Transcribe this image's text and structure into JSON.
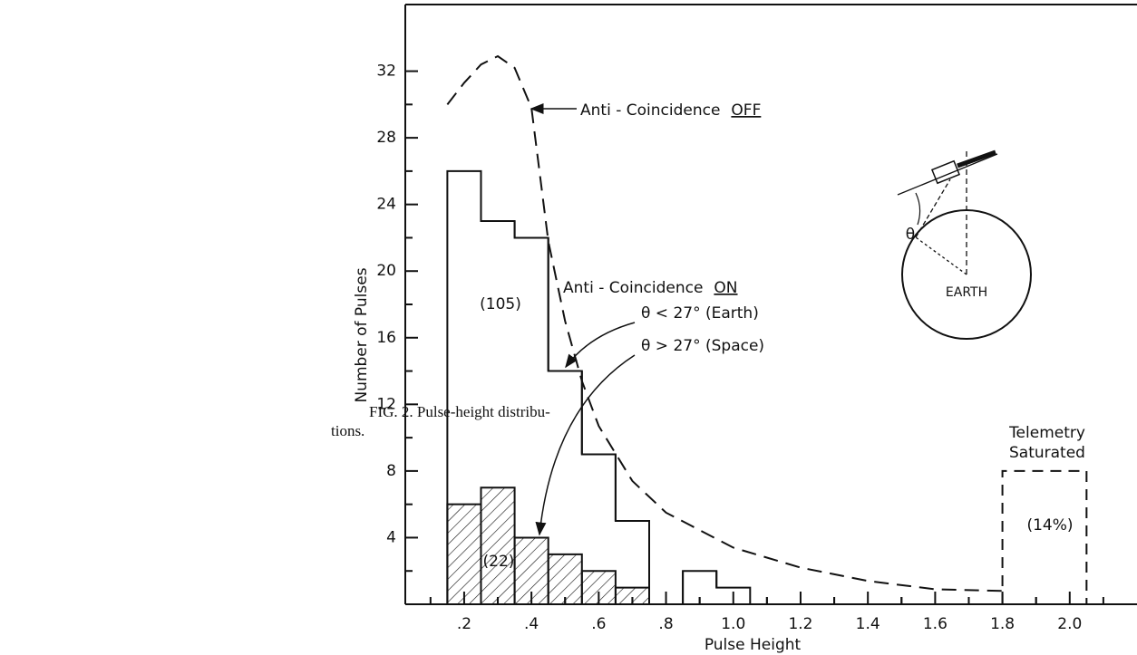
{
  "caption": [
    "FIG. 2.  Pulse-height distribu-",
    "tions."
  ],
  "chart_data": {
    "type": "histogram",
    "x_label": "Pulse Height",
    "y_label": "Number of Pulses",
    "xlim": [
      0.025,
      2.2
    ],
    "ylim": [
      0,
      36
    ],
    "xticks": [
      {
        "value": 0.2,
        "label": ".2"
      },
      {
        "value": 0.4,
        "label": ".4"
      },
      {
        "value": 0.6,
        "label": ".6"
      },
      {
        "value": 0.8,
        "label": ".8"
      },
      {
        "value": 1,
        "label": "1.0"
      },
      1.2,
      1.4,
      1.6,
      1.8,
      {
        "value": 2,
        "label": "2.0"
      }
    ],
    "yticks": [
      4,
      8,
      12,
      16,
      20,
      24,
      28,
      32
    ],
    "bins": [
      0.15,
      0.25,
      0.35,
      0.45,
      0.55,
      0.65,
      0.75,
      0.85,
      0.95,
      1.05
    ],
    "counts": [
      26,
      23,
      22,
      14,
      9,
      5,
      0,
      2,
      1
    ],
    "hatched": {
      "bins": [
        0.15,
        0.25,
        0.35,
        0.45,
        0.55,
        0.65,
        0.75
      ],
      "counts": [
        6,
        7,
        4,
        3,
        2,
        1
      ]
    },
    "saturated": {
      "bins": [
        1.8,
        2.05
      ],
      "counts": [
        8
      ],
      "dashed": true
    },
    "curve": {
      "dashed": true,
      "x": [
        0.15,
        0.2,
        0.25,
        0.3,
        0.35,
        0.4,
        0.45,
        0.5,
        0.55,
        0.6,
        0.7,
        0.8,
        1.0,
        1.2,
        1.4,
        1.6,
        1.8
      ],
      "y": [
        30,
        31.3,
        32.4,
        32.9,
        32.2,
        29.8,
        21.8,
        17,
        13.4,
        10.7,
        7.4,
        5.5,
        3.4,
        2.2,
        1.4,
        0.9,
        0.8
      ]
    },
    "annotations": [
      {
        "text": "Anti - Coincidence",
        "emph": "OFF"
      },
      {
        "text": "Anti - Coincidence",
        "emph": "ON"
      },
      {
        "text": "θ < 27° (Earth)"
      },
      {
        "text": "θ > 27° (Space)"
      },
      {
        "text": "(105)"
      },
      {
        "text": "(22)"
      },
      {
        "text": "Telemetry"
      },
      {
        "text": "Saturated"
      },
      {
        "text": "(14%)"
      },
      {
        "text": "EARTH"
      },
      {
        "text": "θ"
      }
    ]
  }
}
